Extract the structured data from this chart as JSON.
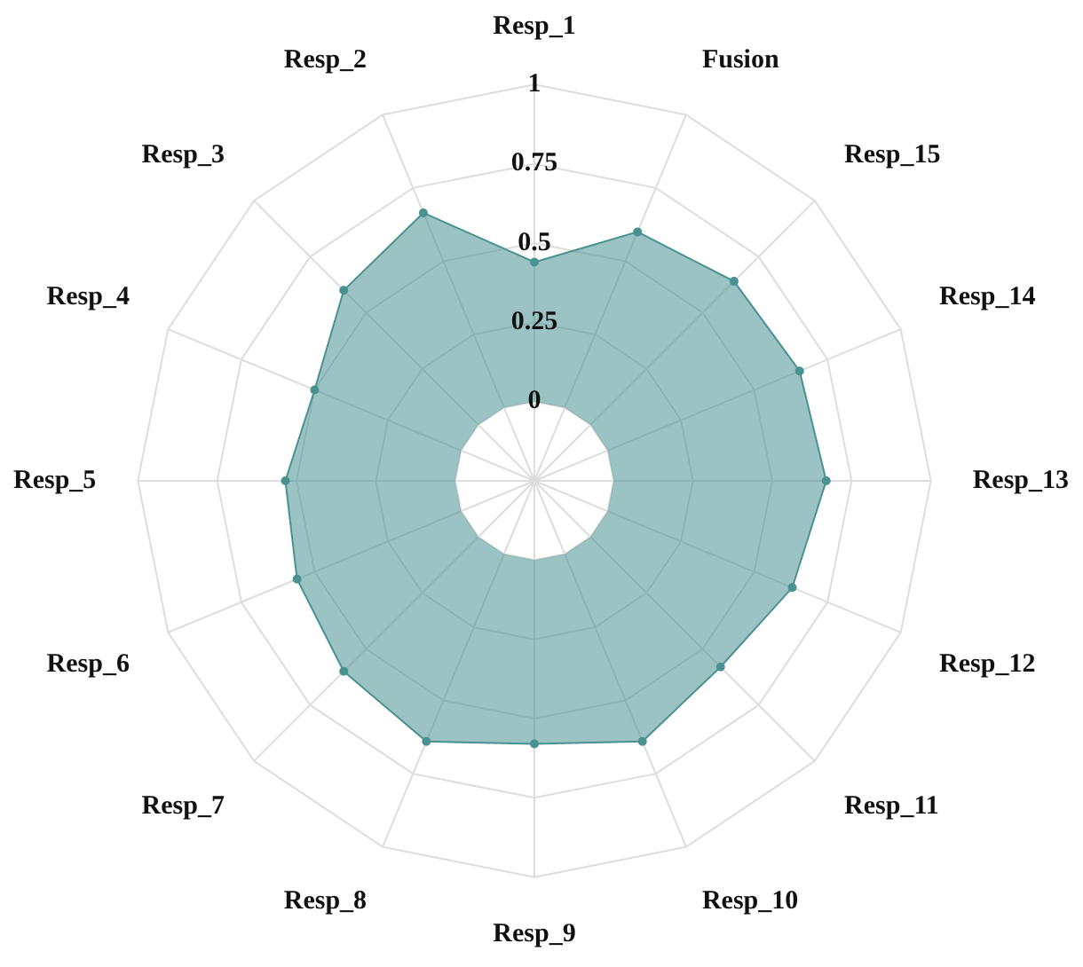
{
  "chart_data": {
    "type": "radar",
    "categories": [
      "Resp_1",
      "Fusion",
      "Resp_15",
      "Resp_14",
      "Resp_13",
      "Resp_12",
      "Resp_11",
      "Resp_10",
      "Resp_9",
      "Resp_8",
      "Resp_7",
      "Resp_6",
      "Resp_5",
      "Resp_4",
      "Resp_3",
      "Resp_2"
    ],
    "series": [
      {
        "color": "#4a9292",
        "values": [
          0.44,
          0.6,
          0.64,
          0.655,
          0.67,
          0.63,
          0.58,
          0.64,
          0.58,
          0.64,
          0.6,
          0.56,
          0.535,
          0.5,
          0.6,
          0.665
        ]
      }
    ],
    "ylim": [
      -0.25,
      1
    ],
    "yticks": [
      0,
      0.25,
      0.5,
      0.75,
      1
    ],
    "grid": true,
    "marker": "circle",
    "legend": false
  }
}
